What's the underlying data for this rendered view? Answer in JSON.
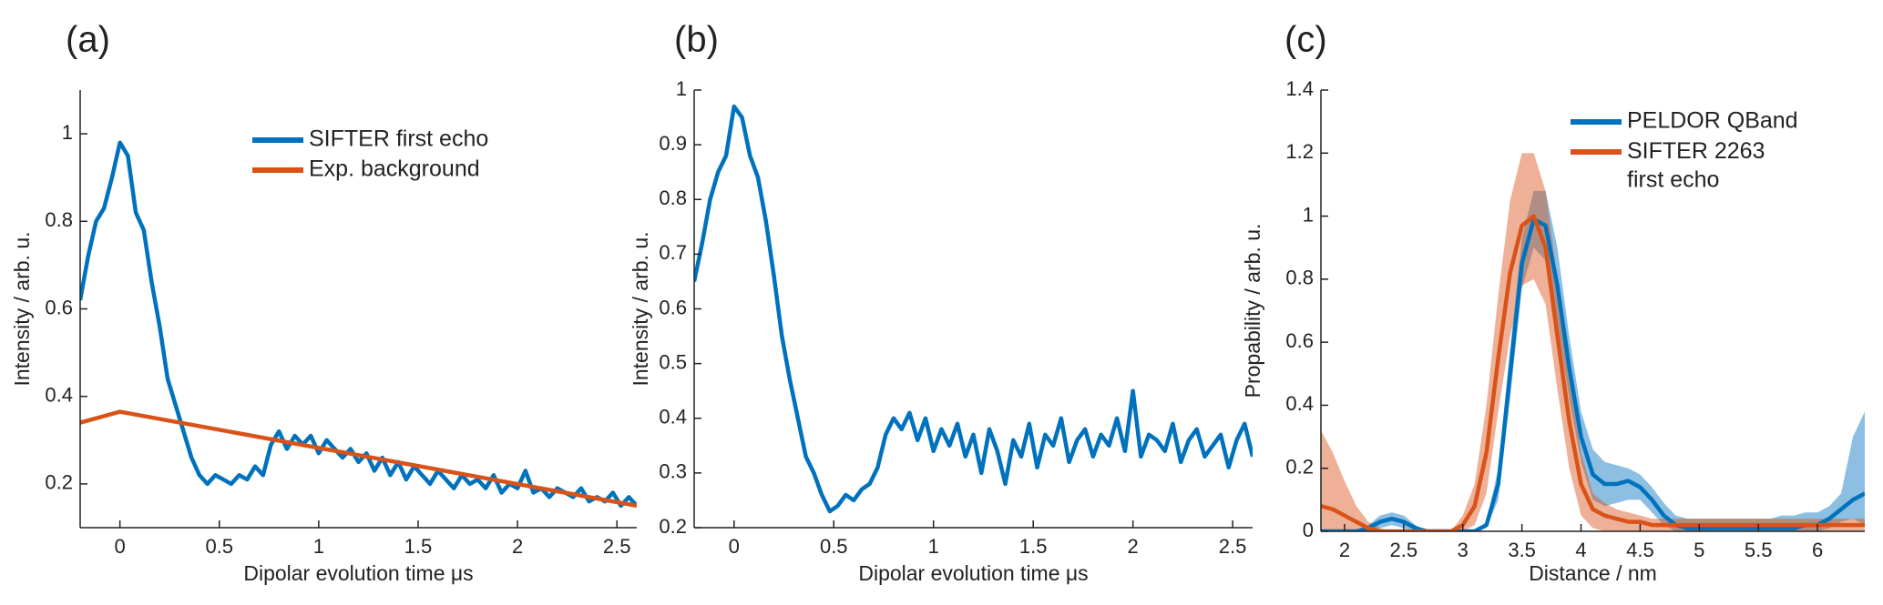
{
  "chart_data": [
    {
      "type": "line",
      "label": "(a)",
      "xlabel": "Dipolar evolution time μs",
      "ylabel": "Intensity / arb. u.",
      "xlim": [
        -0.2,
        2.6
      ],
      "ylim": [
        0.1,
        1.1
      ],
      "xticks": [
        0,
        0.5,
        1,
        1.5,
        2,
        2.5
      ],
      "yticks": [
        0.2,
        0.4,
        0.6,
        0.8,
        1
      ],
      "legend": "upper right",
      "series": [
        {
          "name": "SIFTER first echo",
          "color": "#0072bd",
          "x": [
            -0.2,
            -0.16,
            -0.12,
            -0.08,
            -0.04,
            0,
            0.04,
            0.08,
            0.12,
            0.16,
            0.2,
            0.24,
            0.28,
            0.32,
            0.36,
            0.4,
            0.44,
            0.48,
            0.52,
            0.56,
            0.6,
            0.64,
            0.68,
            0.72,
            0.76,
            0.8,
            0.84,
            0.88,
            0.92,
            0.96,
            1,
            1.04,
            1.08,
            1.12,
            1.16,
            1.2,
            1.24,
            1.28,
            1.32,
            1.36,
            1.4,
            1.44,
            1.48,
            1.52,
            1.56,
            1.6,
            1.64,
            1.68,
            1.72,
            1.76,
            1.8,
            1.84,
            1.88,
            1.92,
            1.96,
            2,
            2.04,
            2.08,
            2.12,
            2.16,
            2.2,
            2.24,
            2.28,
            2.32,
            2.36,
            2.4,
            2.44,
            2.48,
            2.52,
            2.56,
            2.6
          ],
          "values": [
            0.62,
            0.72,
            0.8,
            0.83,
            0.9,
            0.98,
            0.95,
            0.82,
            0.78,
            0.66,
            0.56,
            0.44,
            0.38,
            0.32,
            0.26,
            0.22,
            0.2,
            0.22,
            0.21,
            0.2,
            0.22,
            0.21,
            0.24,
            0.22,
            0.29,
            0.32,
            0.28,
            0.31,
            0.29,
            0.31,
            0.27,
            0.3,
            0.28,
            0.26,
            0.28,
            0.25,
            0.27,
            0.23,
            0.26,
            0.22,
            0.25,
            0.21,
            0.24,
            0.22,
            0.2,
            0.23,
            0.21,
            0.19,
            0.22,
            0.2,
            0.21,
            0.19,
            0.22,
            0.18,
            0.2,
            0.19,
            0.23,
            0.18,
            0.19,
            0.17,
            0.19,
            0.18,
            0.17,
            0.19,
            0.16,
            0.17,
            0.16,
            0.18,
            0.15,
            0.17,
            0.15
          ]
        },
        {
          "name": "Exp. background",
          "color": "#d95319",
          "x": [
            -0.2,
            0,
            2.6
          ],
          "values": [
            0.34,
            0.365,
            0.15
          ]
        }
      ]
    },
    {
      "type": "line",
      "label": "(b)",
      "xlabel": "Dipolar evolution time μs",
      "ylabel": "Intensity / arb. u.",
      "xlim": [
        -0.2,
        2.6
      ],
      "ylim": [
        0.2,
        1
      ],
      "xticks": [
        0,
        0.5,
        1,
        1.5,
        2,
        2.5
      ],
      "yticks": [
        0.2,
        0.3,
        0.4,
        0.5,
        0.6,
        0.7,
        0.8,
        0.9,
        1
      ],
      "series": [
        {
          "color": "#0072bd",
          "x": [
            -0.2,
            -0.16,
            -0.12,
            -0.08,
            -0.04,
            0,
            0.04,
            0.08,
            0.12,
            0.16,
            0.2,
            0.24,
            0.28,
            0.32,
            0.36,
            0.4,
            0.44,
            0.48,
            0.52,
            0.56,
            0.6,
            0.64,
            0.68,
            0.72,
            0.76,
            0.8,
            0.84,
            0.88,
            0.92,
            0.96,
            1,
            1.04,
            1.08,
            1.12,
            1.16,
            1.2,
            1.24,
            1.28,
            1.32,
            1.36,
            1.4,
            1.44,
            1.48,
            1.52,
            1.56,
            1.6,
            1.64,
            1.68,
            1.72,
            1.76,
            1.8,
            1.84,
            1.88,
            1.92,
            1.96,
            2,
            2.04,
            2.08,
            2.12,
            2.16,
            2.2,
            2.24,
            2.28,
            2.32,
            2.36,
            2.4,
            2.44,
            2.48,
            2.52,
            2.56,
            2.6
          ],
          "values": [
            0.65,
            0.72,
            0.8,
            0.85,
            0.88,
            0.97,
            0.95,
            0.88,
            0.84,
            0.76,
            0.66,
            0.55,
            0.47,
            0.4,
            0.33,
            0.3,
            0.26,
            0.23,
            0.24,
            0.26,
            0.25,
            0.27,
            0.28,
            0.31,
            0.37,
            0.4,
            0.38,
            0.41,
            0.36,
            0.4,
            0.34,
            0.38,
            0.35,
            0.39,
            0.33,
            0.37,
            0.3,
            0.38,
            0.34,
            0.28,
            0.36,
            0.33,
            0.39,
            0.31,
            0.37,
            0.35,
            0.4,
            0.32,
            0.36,
            0.38,
            0.33,
            0.37,
            0.35,
            0.4,
            0.34,
            0.45,
            0.33,
            0.37,
            0.36,
            0.34,
            0.39,
            0.32,
            0.36,
            0.38,
            0.33,
            0.35,
            0.37,
            0.31,
            0.36,
            0.39,
            0.33
          ]
        }
      ]
    },
    {
      "type": "line",
      "label": "(c)",
      "xlabel": "Distance / nm",
      "ylabel": "Propability / arb. u.",
      "xlim": [
        1.8,
        6.4
      ],
      "ylim": [
        0,
        1.4
      ],
      "xticks": [
        2,
        2.5,
        3,
        3.5,
        4,
        4.5,
        5,
        5.5,
        6
      ],
      "yticks": [
        0,
        0.2,
        0.4,
        0.6,
        0.8,
        1,
        1.2,
        1.4
      ],
      "legend": "upper right",
      "series": [
        {
          "name": "PELDOR QBand",
          "color": "#0072bd",
          "x": [
            1.8,
            1.9,
            2,
            2.1,
            2.2,
            2.3,
            2.4,
            2.5,
            2.6,
            2.7,
            2.8,
            2.9,
            3,
            3.1,
            3.2,
            3.3,
            3.4,
            3.5,
            3.6,
            3.7,
            3.8,
            3.9,
            4,
            4.1,
            4.2,
            4.3,
            4.4,
            4.5,
            4.6,
            4.7,
            4.8,
            4.9,
            5,
            5.1,
            5.2,
            5.3,
            5.4,
            5.5,
            5.6,
            5.7,
            5.8,
            5.9,
            6,
            6.1,
            6.2,
            6.3,
            6.4
          ],
          "values": [
            0,
            0,
            0,
            0,
            0.01,
            0.03,
            0.04,
            0.03,
            0.01,
            0,
            0,
            0,
            0,
            0,
            0.02,
            0.15,
            0.5,
            0.85,
            0.99,
            0.97,
            0.78,
            0.52,
            0.3,
            0.18,
            0.15,
            0.15,
            0.16,
            0.14,
            0.1,
            0.05,
            0.02,
            0.01,
            0.01,
            0.01,
            0.01,
            0.01,
            0.01,
            0.01,
            0.01,
            0.01,
            0.01,
            0.02,
            0.02,
            0.04,
            0.07,
            0.1,
            0.12
          ],
          "upper": [
            0,
            0,
            0,
            0,
            0.02,
            0.05,
            0.06,
            0.05,
            0.02,
            0,
            0,
            0,
            0,
            0,
            0.03,
            0.2,
            0.58,
            0.93,
            1.08,
            1.08,
            0.9,
            0.62,
            0.38,
            0.26,
            0.22,
            0.21,
            0.2,
            0.18,
            0.14,
            0.09,
            0.05,
            0.04,
            0.04,
            0.04,
            0.04,
            0.04,
            0.04,
            0.04,
            0.04,
            0.05,
            0.05,
            0.06,
            0.06,
            0.08,
            0.12,
            0.3,
            0.38
          ],
          "lower": [
            0,
            0,
            0,
            0,
            0,
            0.01,
            0.02,
            0.01,
            0,
            0,
            0,
            0,
            0,
            0,
            0.01,
            0.1,
            0.42,
            0.77,
            0.9,
            0.86,
            0.66,
            0.42,
            0.22,
            0.1,
            0.08,
            0.09,
            0.1,
            0.1,
            0.06,
            0.02,
            0,
            0,
            0,
            0,
            0,
            0,
            0,
            0,
            0,
            0,
            0,
            0,
            0,
            0.01,
            0.03,
            0.04,
            0.02
          ]
        },
        {
          "name": "SIFTER 2263\nfirst echo",
          "color": "#d95319",
          "x": [
            1.8,
            1.9,
            2,
            2.1,
            2.2,
            2.3,
            2.4,
            2.5,
            2.6,
            2.7,
            2.8,
            2.9,
            3,
            3.1,
            3.2,
            3.3,
            3.4,
            3.5,
            3.6,
            3.7,
            3.8,
            3.9,
            4,
            4.1,
            4.2,
            4.3,
            4.4,
            4.5,
            4.6,
            4.7,
            4.8,
            4.9,
            5,
            5.1,
            5.2,
            5.3,
            5.4,
            5.5,
            5.6,
            5.7,
            5.8,
            5.9,
            6,
            6.1,
            6.2,
            6.3,
            6.4
          ],
          "values": [
            0.08,
            0.07,
            0.05,
            0.03,
            0.01,
            0,
            0,
            0,
            0,
            0,
            0,
            0,
            0.02,
            0.08,
            0.25,
            0.55,
            0.82,
            0.97,
            1,
            0.9,
            0.62,
            0.35,
            0.15,
            0.07,
            0.05,
            0.04,
            0.03,
            0.03,
            0.02,
            0.02,
            0.02,
            0.02,
            0.02,
            0.02,
            0.02,
            0.02,
            0.02,
            0.02,
            0.02,
            0.02,
            0.02,
            0.02,
            0.02,
            0.02,
            0.02,
            0.02,
            0.02
          ],
          "upper": [
            0.32,
            0.25,
            0.16,
            0.08,
            0.03,
            0.01,
            0,
            0,
            0,
            0,
            0,
            0,
            0.05,
            0.15,
            0.4,
            0.75,
            1.05,
            1.2,
            1.2,
            1.08,
            0.8,
            0.5,
            0.25,
            0.12,
            0.09,
            0.07,
            0.06,
            0.05,
            0.04,
            0.04,
            0.04,
            0.04,
            0.04,
            0.04,
            0.04,
            0.04,
            0.04,
            0.04,
            0.04,
            0.04,
            0.04,
            0.04,
            0.04,
            0.04,
            0.04,
            0.04,
            0.04
          ],
          "lower": [
            0,
            0,
            0,
            0,
            0,
            0,
            0,
            0,
            0,
            0,
            0,
            0,
            0,
            0.02,
            0.12,
            0.38,
            0.62,
            0.78,
            0.8,
            0.72,
            0.45,
            0.2,
            0.05,
            0.01,
            0,
            0,
            0,
            0,
            0,
            0,
            0,
            0,
            0,
            0,
            0,
            0,
            0,
            0,
            0,
            0,
            0,
            0,
            0,
            0,
            0,
            0,
            0
          ]
        }
      ]
    }
  ]
}
